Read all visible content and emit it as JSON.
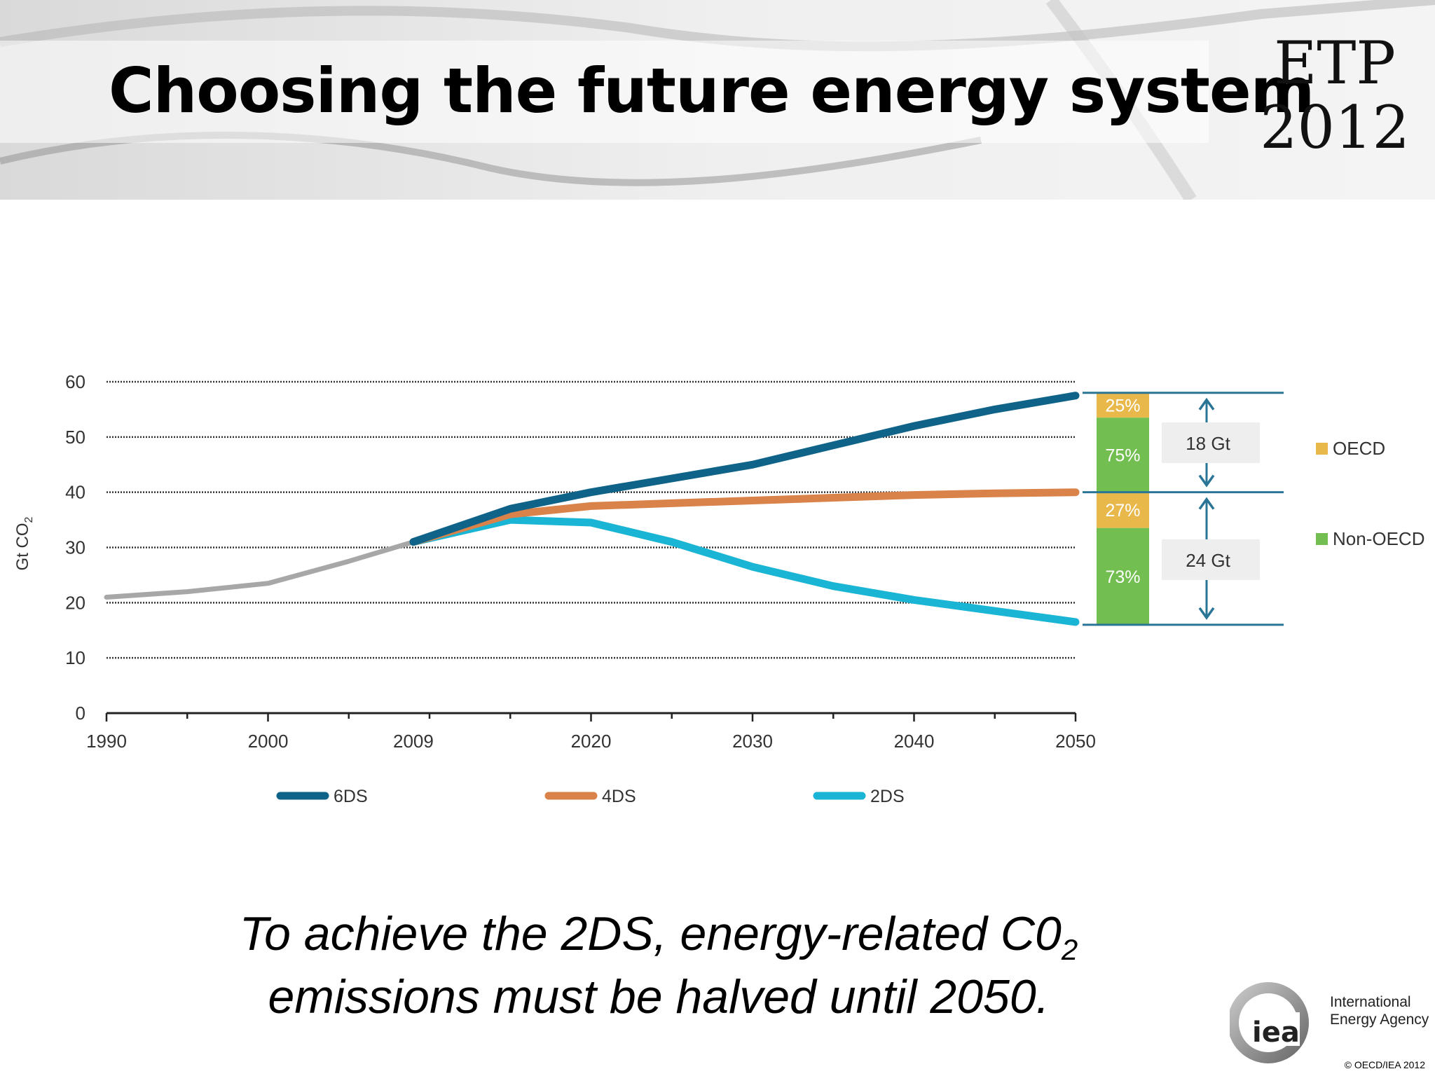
{
  "slide": {
    "title": "Choosing the future energy system",
    "badge": {
      "line1": "ETP",
      "line2": "2012"
    },
    "caption": {
      "line1": "To achieve the 2DS, energy-related C0",
      "sub": "2",
      "line2": "emissions must be halved until 2050."
    },
    "logo": {
      "mark": "iea",
      "line1": "International",
      "line2": "Energy Agency"
    },
    "copyright": "© OECD/IEA 2012"
  },
  "colors": {
    "6DS": "#0f6388",
    "4DS": "#d9834a",
    "2DS": "#1ab5d4",
    "historical": "#a7a7a7",
    "OECD": "#e8b84a",
    "Non-OECD": "#72be50",
    "bracket": "#2a7596"
  },
  "chart_data": {
    "type": "line",
    "title": "",
    "xlabel": "",
    "ylabel": "Gt CO",
    "ylabel_sub": "2",
    "xlim": [
      1990,
      2050
    ],
    "ylim": [
      0,
      60
    ],
    "x_ticks": [
      1990,
      2000,
      2009,
      2020,
      2030,
      2040,
      2050
    ],
    "y_ticks": [
      0,
      10,
      20,
      30,
      40,
      50,
      60
    ],
    "grid": true,
    "historical": {
      "x": [
        1990,
        1995,
        2000,
        2005,
        2009
      ],
      "y": [
        21,
        22,
        23.5,
        27.5,
        31
      ]
    },
    "series": [
      {
        "name": "6DS",
        "x": [
          2009,
          2015,
          2020,
          2025,
          2030,
          2035,
          2040,
          2045,
          2050
        ],
        "y": [
          31,
          37,
          40,
          42.5,
          45,
          48.5,
          52,
          55,
          57.5
        ]
      },
      {
        "name": "4DS",
        "x": [
          2009,
          2015,
          2020,
          2025,
          2030,
          2035,
          2040,
          2045,
          2050
        ],
        "y": [
          31,
          36,
          37.5,
          38,
          38.5,
          39,
          39.5,
          39.8,
          40
        ]
      },
      {
        "name": "2DS",
        "x": [
          2009,
          2015,
          2020,
          2025,
          2030,
          2035,
          2040,
          2045,
          2050
        ],
        "y": [
          31,
          35,
          34.5,
          31,
          26.5,
          23,
          20.5,
          18.5,
          16.5
        ]
      }
    ],
    "legend_position": "bottom",
    "breakdown": {
      "upper": {
        "range": [
          40,
          58
        ],
        "gap_label": "18 Gt",
        "OECD_label": "25%",
        "NonOECD_label": "75%",
        "OECD_fraction": 0.25
      },
      "lower": {
        "range": [
          16,
          40
        ],
        "gap_label": "24 Gt",
        "OECD_label": "27%",
        "NonOECD_label": "73%",
        "OECD_fraction": 0.27
      },
      "legend": [
        "OECD",
        "Non-OECD"
      ]
    }
  }
}
